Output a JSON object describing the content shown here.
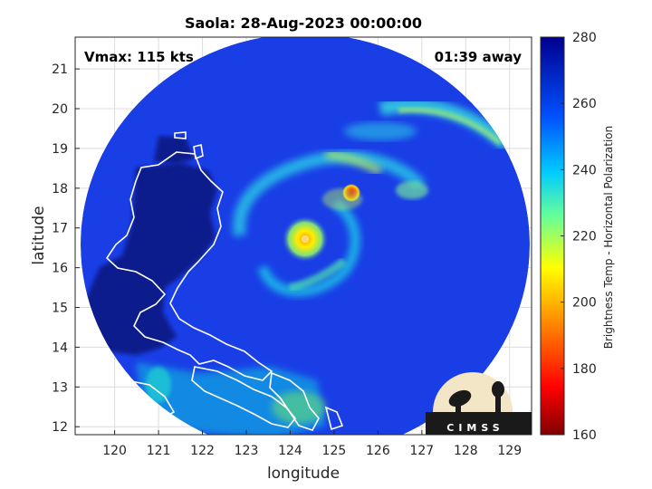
{
  "chart_data": {
    "type": "heatmap",
    "title": "Saola: 28-Aug-2023 00:00:00",
    "xlabel": "longitude",
    "ylabel": "latitude",
    "xlim": [
      119.1,
      129.5
    ],
    "ylim": [
      11.8,
      21.8
    ],
    "xticks": [
      "120",
      "121",
      "122",
      "123",
      "124",
      "125",
      "126",
      "127",
      "128",
      "129"
    ],
    "yticks": [
      "12",
      "13",
      "14",
      "15",
      "16",
      "17",
      "18",
      "19",
      "20",
      "21"
    ],
    "grid": true,
    "annotations": {
      "vmax": "Vmax: 115 kts",
      "time_away": "01:39 away"
    },
    "colorbar": {
      "label": "Brightness Temp - Horizontal Polarization",
      "range": [
        160,
        280
      ],
      "ticks": [
        "160",
        "180",
        "200",
        "220",
        "240",
        "260",
        "280"
      ]
    },
    "storm_center": {
      "lon": 124.4,
      "lat": 16.6
    },
    "swath": {
      "center_lon": 124.4,
      "center_lat": 16.9,
      "radius_lon": 5.5,
      "radius_lat": 5.3
    },
    "logo": "CIMSS",
    "colors": {
      "background_tb": "#1a3ee6",
      "land": "#0d1f8c",
      "coast": "#ffffff"
    }
  }
}
